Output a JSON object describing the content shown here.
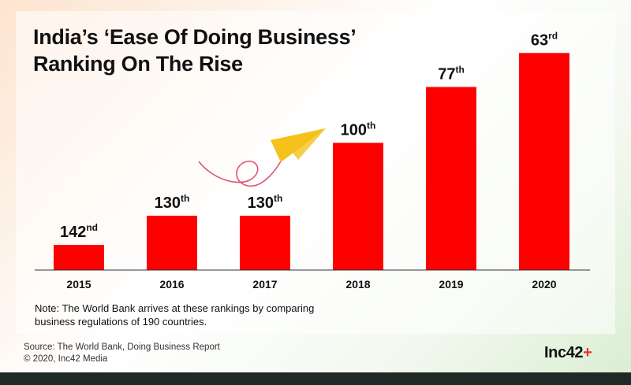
{
  "header": {
    "title_line1": "India’s ‘Ease Of Doing Business’",
    "title_line2": "Ranking On The Rise"
  },
  "chart_data": {
    "type": "bar",
    "title": "India’s ‘Ease Of Doing Business’ Ranking On The Rise",
    "categories": [
      "2015",
      "2016",
      "2017",
      "2018",
      "2019",
      "2020"
    ],
    "values": [
      142,
      130,
      130,
      100,
      77,
      63
    ],
    "labels": [
      {
        "num": "142",
        "suffix": "nd"
      },
      {
        "num": "130",
        "suffix": "th"
      },
      {
        "num": "130",
        "suffix": "th"
      },
      {
        "num": "100",
        "suffix": "th"
      },
      {
        "num": "77",
        "suffix": "th"
      },
      {
        "num": "63",
        "suffix": "rd"
      }
    ],
    "xlabel": "",
    "ylabel": "",
    "bar_color": "#ff0000",
    "grid": false,
    "legend": "none"
  },
  "note": {
    "line1": "Note: The World Bank arrives at these rankings by comparing",
    "line2": "business regulations of 190 countries."
  },
  "source": {
    "line1": "Source: The World Bank, Doing Business Report",
    "line2": "© 2020, Inc42 Media"
  },
  "logo": {
    "text": "Inc42",
    "plus": "+"
  },
  "decor": {
    "icon": "paper-plane-icon",
    "plane_color": "#f5c21a",
    "trail_color": "#e0527a"
  }
}
